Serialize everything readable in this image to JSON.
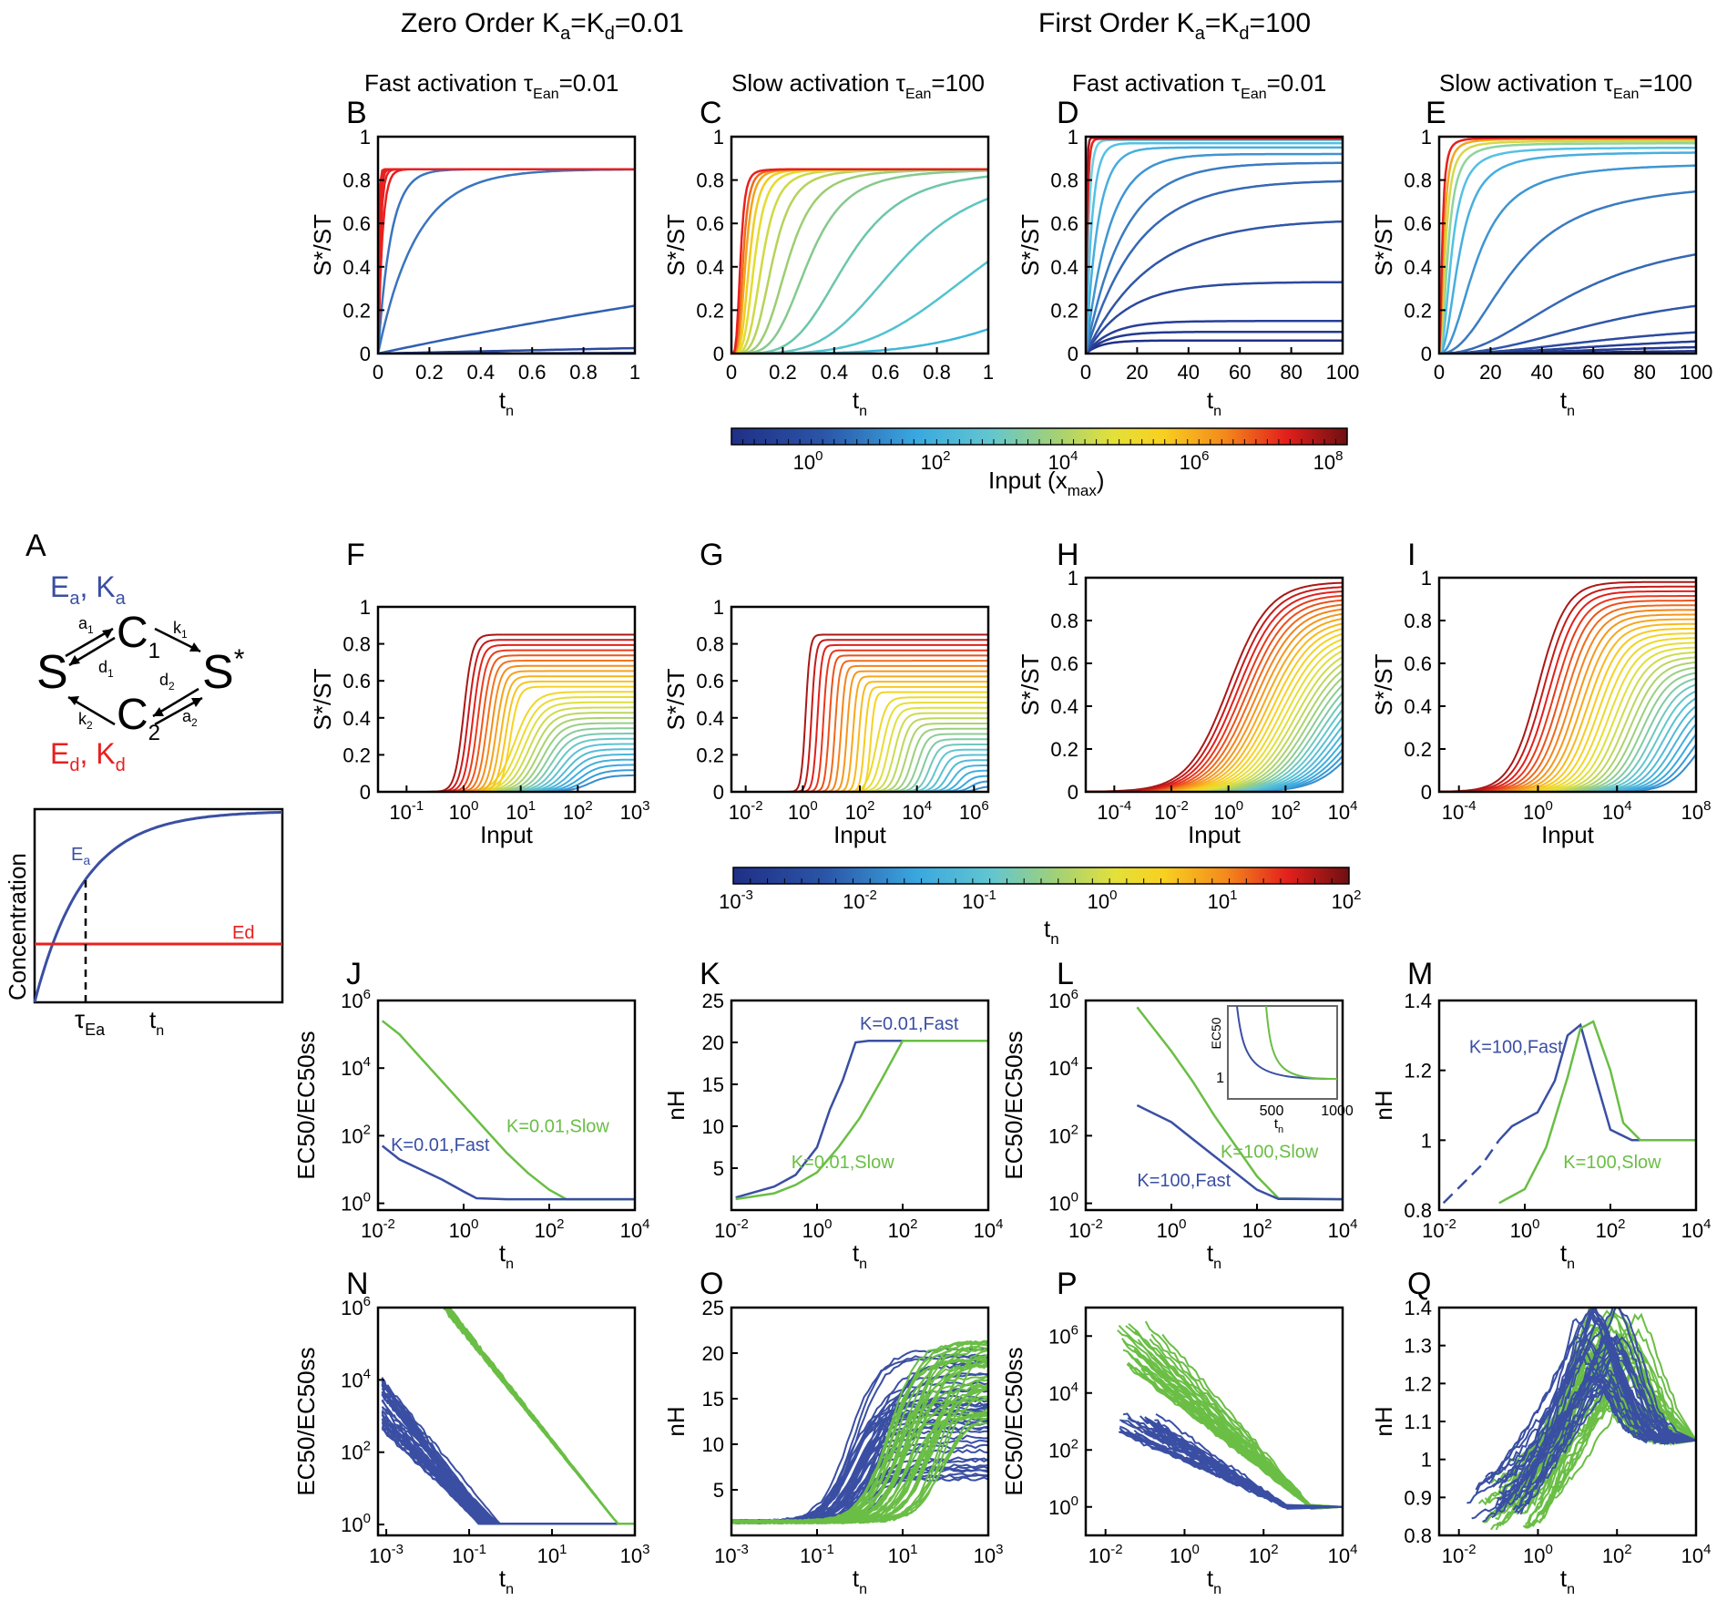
{
  "headers": {
    "zero_order": "Zero Order K",
    "zero_order_sub": "a",
    "zero_order_mid": "=K",
    "zero_order_sub2": "d",
    "zero_order_val": "=0.01",
    "first_order": "First Order K",
    "first_order_val": "=100"
  },
  "diagram_A": {
    "letter": "A",
    "ea": "E",
    "ea_sub": "a",
    "ka": "K",
    "ed": "E",
    "ed_sub": "d",
    "kd": "K",
    "s": "S",
    "s_star": "S",
    "star": "*",
    "c1": "C",
    "c2": "C",
    "one": "1",
    "two": "2",
    "a1": "a",
    "d1": "d",
    "k1": "k",
    "d2": "d",
    "k2": "k",
    "a2": "a",
    "comma": ",",
    "colors": {
      "activator": "#3a4fa3",
      "deactivator": "#e8201f"
    }
  },
  "diagram_time": {
    "ylabel": "Concentration",
    "ea_label": "E",
    "ea_sub": "a",
    "ed_label": "Ed",
    "tau": "τ",
    "tau_sub": "Ea",
    "tn": "t",
    "tn_sub": "n"
  },
  "colorbars": [
    {
      "label": "Input (x",
      "label_sub": "max",
      "label_close": ")",
      "ticks": [
        "10",
        "10",
        "10",
        "10",
        "10"
      ],
      "exps": [
        "0",
        "2",
        "4",
        "6",
        "8"
      ]
    },
    {
      "label": "t",
      "label_sub": "n",
      "ticks": [
        "10",
        "10",
        "10",
        "10",
        "10",
        "10"
      ],
      "exps": [
        "-3",
        "-2",
        "-1",
        "0",
        "1",
        "2"
      ]
    }
  ],
  "chart_data": [
    {
      "id": "B",
      "type": "line",
      "title": "Fast activation",
      "tau": "τ",
      "tau_sub": "Ean",
      "tau_val": "=0.01",
      "xlabel": "t",
      "xlabel_sub": "n",
      "ylabel": "S*/ST",
      "xlim": [
        0,
        1
      ],
      "ylim": [
        0,
        1
      ],
      "xticks": [
        "0",
        "0.2",
        "0.4",
        "0.6",
        "0.8",
        "1"
      ],
      "yticks": [
        "0",
        "0.2",
        "0.4",
        "0.6",
        "0.8",
        "1"
      ],
      "plateau": 0.85,
      "rise_times": [
        1000,
        100,
        10,
        0.45,
        0.15,
        0.05,
        0.03,
        0.02,
        0.015,
        0.01
      ],
      "colors": [
        "#2a3f94",
        "#2b4aa0",
        "#2f5fb0",
        "#3a74bf",
        "#3a74bf",
        "#e8201f",
        "#e8201f",
        "#e8201f",
        "#e8201f",
        "#e8201f"
      ]
    },
    {
      "id": "C",
      "type": "line",
      "title": "Slow activation",
      "tau": "τ",
      "tau_sub": "Ean",
      "tau_val": "=100",
      "xlabel": "t",
      "xlabel_sub": "n",
      "ylabel": "S*/ST",
      "xlim": [
        0,
        1
      ],
      "ylim": [
        0,
        1
      ],
      "xticks": [
        "0",
        "0.2",
        "0.4",
        "0.6",
        "0.8",
        "1"
      ],
      "yticks": [
        "0",
        "0.2",
        "0.4",
        "0.6",
        "0.8",
        "1"
      ],
      "plateau": 0.85,
      "sigmoid_mid": [
        1.6,
        1.0,
        0.66,
        0.45,
        0.3,
        0.22,
        0.16,
        0.12,
        0.09,
        0.07,
        0.055,
        0.045,
        0.035
      ],
      "colors": [
        "#3fb7d8",
        "#51c2cf",
        "#5fc4c2",
        "#6cc6aa",
        "#86c98e",
        "#9ccd73",
        "#b5d35a",
        "#cfd943",
        "#e3dc2e",
        "#f1cc22",
        "#f3a21e",
        "#ef6c1d",
        "#e8201f"
      ]
    },
    {
      "id": "D",
      "type": "line",
      "title": "Fast activation",
      "tau": "τ",
      "tau_sub": "Ean",
      "tau_val": "=0.01",
      "xlabel": "t",
      "xlabel_sub": "n",
      "ylabel": "S*/ST",
      "xlim": [
        0,
        100
      ],
      "ylim": [
        0,
        1
      ],
      "xticks": [
        "0",
        "20",
        "40",
        "60",
        "80",
        "100"
      ],
      "yticks": [
        "0",
        "0.2",
        "0.4",
        "0.6",
        "0.8",
        "1"
      ],
      "plateaus": [
        0.06,
        0.1,
        0.15,
        0.33,
        0.62,
        0.8,
        0.88,
        0.92,
        0.95,
        0.97,
        0.985,
        0.99,
        0.995
      ],
      "rates": [
        0.01,
        0.012,
        0.015,
        0.02,
        0.025,
        0.04,
        0.06,
        0.1,
        0.2,
        0.4,
        0.8,
        1.5,
        3.0
      ],
      "colors": [
        "#1f2f86",
        "#23398f",
        "#273f96",
        "#2c4a9f",
        "#3056a8",
        "#3568b4",
        "#3a7bc2",
        "#3f95d2",
        "#47aede",
        "#54c0e5",
        "#6bcfe0",
        "#e8201f",
        "#a0141a"
      ]
    },
    {
      "id": "E",
      "type": "line",
      "title": "Slow activation",
      "tau": "τ",
      "tau_sub": "Ean",
      "tau_val": "=100",
      "xlabel": "t",
      "xlabel_sub": "n",
      "ylabel": "S*/ST",
      "xlim": [
        0,
        100
      ],
      "ylim": [
        0,
        1
      ],
      "xticks": [
        "0",
        "20",
        "40",
        "60",
        "80",
        "100"
      ],
      "yticks": [
        "0",
        "0.2",
        "0.4",
        "0.6",
        "0.8",
        "1"
      ],
      "plateaus": [
        0.02,
        0.05,
        0.09,
        0.15,
        0.32,
        0.58,
        0.8,
        0.88,
        0.93,
        0.95,
        0.97,
        0.98,
        0.99,
        0.995
      ],
      "mids": [
        90,
        85,
        80,
        75,
        70,
        55,
        30,
        15,
        8,
        5,
        3.5,
        2.5,
        1.8,
        1.2
      ],
      "colors": [
        "#1f2f86",
        "#23398f",
        "#273f96",
        "#2c4a9f",
        "#3056a8",
        "#3568b4",
        "#3a7bc2",
        "#3f95d2",
        "#47aede",
        "#54c0e5",
        "#8ed3a0",
        "#d6d84a",
        "#f1a71f",
        "#e8201f"
      ]
    },
    {
      "id": "F",
      "type": "line",
      "xlabel": "Input",
      "ylabel": "S*/ST",
      "xlog": true,
      "xlim": [
        -1.5,
        3
      ],
      "ylim": [
        0,
        1
      ],
      "xticks": [
        "10",
        "10",
        "10",
        "10",
        "10"
      ],
      "xtick_exps": [
        "-1",
        "0",
        "1",
        "2",
        "3"
      ],
      "yticks": [
        "0",
        "0.2",
        "0.4",
        "0.6",
        "0.8",
        "1"
      ],
      "curves": 28,
      "plateau_min": 0.09,
      "plateau_max": 0.85,
      "mid_min": 0.0,
      "mid_max": 2.2
    },
    {
      "id": "G",
      "type": "line",
      "xlabel": "Input",
      "ylabel": "S*/ST",
      "xlog": true,
      "xlim": [
        -2.5,
        6.5
      ],
      "ylim": [
        0,
        1
      ],
      "xticks": [
        "10",
        "10",
        "10",
        "10",
        "10"
      ],
      "xtick_exps": [
        "-2",
        "0",
        "2",
        "4",
        "6"
      ],
      "yticks": [
        "0",
        "0.2",
        "0.4",
        "0.6",
        "0.8",
        "1"
      ],
      "curves": 30,
      "plateau_min": 0.03,
      "plateau_max": 0.85,
      "mid_min": 0.1,
      "mid_max": 6.1
    },
    {
      "id": "H",
      "type": "line",
      "xlabel": "Input",
      "ylabel": "S*/ST",
      "xlog": true,
      "xlim": [
        -5,
        4
      ],
      "ylim": [
        0,
        1
      ],
      "xticks": [
        "10",
        "10",
        "10",
        "10",
        "10"
      ],
      "xtick_exps": [
        "-4",
        "-2",
        "0",
        "2",
        "4"
      ],
      "yticks": [
        "0",
        "0.2",
        "0.4",
        "0.6",
        "0.8",
        "1"
      ],
      "curves": 30,
      "plateau_min": 0.42,
      "plateau_max": 0.98,
      "mid_min": 0.0,
      "mid_max": 4.5
    },
    {
      "id": "I",
      "type": "line",
      "xlabel": "Input",
      "ylabel": "S*/ST",
      "xlog": true,
      "xlim": [
        -5,
        8
      ],
      "ylim": [
        0,
        1
      ],
      "xticks": [
        "10",
        "10",
        "10",
        "10"
      ],
      "xtick_exps": [
        "-4",
        "0",
        "4",
        "8"
      ],
      "yticks": [
        "0",
        "0.2",
        "0.4",
        "0.6",
        "0.8",
        "1"
      ],
      "curves": 30,
      "plateau_min": 0.35,
      "plateau_max": 0.98,
      "mid_min": 0.0,
      "mid_max": 8.0
    },
    {
      "id": "J",
      "type": "line",
      "xlabel": "t",
      "xlabel_sub": "n",
      "ylabel": "EC50/EC50ss",
      "xlog": true,
      "ylog": true,
      "xlim": [
        -2,
        4
      ],
      "ylim": [
        -0.2,
        6
      ],
      "xticks": [
        "10",
        "10",
        "10",
        "10"
      ],
      "xtick_exps": [
        "-2",
        "0",
        "2",
        "4"
      ],
      "yticks": [
        "10",
        "10",
        "10",
        "10"
      ],
      "ytick_exps": [
        "0",
        "2",
        "4",
        "6"
      ],
      "series": [
        {
          "name": "K=0.01,Slow",
          "color": "#6abe45",
          "x": [
            -1.9,
            -1.5,
            -1.0,
            -0.5,
            0.0,
            0.5,
            1.0,
            1.5,
            2.0,
            2.4,
            4.0
          ],
          "y": [
            5.4,
            5.0,
            4.3,
            3.6,
            2.9,
            2.2,
            1.5,
            0.9,
            0.4,
            0.12,
            0.12
          ]
        },
        {
          "name": "K=0.01,Fast",
          "color": "#3a4fa3",
          "x": [
            -1.9,
            -1.5,
            -1.0,
            -0.5,
            0.0,
            0.3,
            1.0,
            4.0
          ],
          "y": [
            1.7,
            1.3,
            1.0,
            0.7,
            0.35,
            0.15,
            0.12,
            0.12
          ]
        }
      ]
    },
    {
      "id": "K",
      "type": "line",
      "xlabel": "t",
      "xlabel_sub": "n",
      "ylabel": "nH",
      "xlog": true,
      "xlim": [
        -2,
        4
      ],
      "ylim": [
        0,
        25
      ],
      "xticks": [
        "10",
        "10",
        "10",
        "10"
      ],
      "xtick_exps": [
        "-2",
        "0",
        "2",
        "4"
      ],
      "yticks": [
        "5",
        "10",
        "15",
        "20",
        "25"
      ],
      "series": [
        {
          "name": "K=0.01,Fast",
          "color": "#3a4fa3",
          "x": [
            -1.9,
            -1.0,
            -0.5,
            0.0,
            0.3,
            0.6,
            0.9,
            1.2,
            4.0
          ],
          "y": [
            1.5,
            2.8,
            4.2,
            7.5,
            12.0,
            15.5,
            20.0,
            20.2,
            20.2
          ]
        },
        {
          "name": "K=0.01,Slow",
          "color": "#6abe45",
          "x": [
            -1.9,
            -1.0,
            -0.5,
            0.0,
            0.5,
            1.0,
            1.5,
            2.0,
            4.0
          ],
          "y": [
            1.3,
            2.0,
            3.0,
            4.5,
            7.5,
            11.0,
            15.5,
            20.2,
            20.2
          ]
        }
      ]
    },
    {
      "id": "L",
      "type": "line",
      "xlabel": "t",
      "xlabel_sub": "n",
      "ylabel": "EC50/EC50ss",
      "xlog": true,
      "ylog": true,
      "xlim": [
        -2,
        4
      ],
      "ylim": [
        -0.2,
        6
      ],
      "xticks": [
        "10",
        "10",
        "10",
        "10"
      ],
      "xtick_exps": [
        "-2",
        "0",
        "2",
        "4"
      ],
      "yticks": [
        "10",
        "10",
        "10",
        "10"
      ],
      "ytick_exps": [
        "0",
        "2",
        "4",
        "6"
      ],
      "series": [
        {
          "name": "K=100,Slow",
          "color": "#6abe45",
          "x": [
            -0.8,
            0.0,
            0.5,
            1.0,
            1.5,
            2.0,
            2.5,
            4.0
          ],
          "y": [
            5.8,
            4.5,
            3.6,
            2.6,
            1.7,
            0.8,
            0.15,
            0.12
          ]
        },
        {
          "name": "K=100,Fast",
          "color": "#3a4fa3",
          "x": [
            -0.8,
            0.0,
            0.5,
            1.0,
            1.5,
            2.0,
            2.5,
            4.0
          ],
          "y": [
            2.9,
            2.4,
            1.9,
            1.4,
            0.9,
            0.4,
            0.13,
            0.12
          ]
        }
      ],
      "inset": {
        "ylabel": "EC50",
        "ytick": "1",
        "xticks": [
          "500",
          "1000"
        ],
        "xlabel": "t",
        "xlabel_sub": "n"
      }
    },
    {
      "id": "M",
      "type": "line",
      "xlabel": "t",
      "xlabel_sub": "n",
      "ylabel": "nH",
      "xlog": true,
      "xlim": [
        -2,
        4
      ],
      "ylim": [
        0.8,
        1.4
      ],
      "xticks": [
        "10",
        "10",
        "10",
        "10"
      ],
      "xtick_exps": [
        "-2",
        "0",
        "2",
        "4"
      ],
      "yticks": [
        "0.8",
        "1",
        "1.2",
        "1.4"
      ],
      "series": [
        {
          "name": "K=100,Fast",
          "color": "#3a4fa3",
          "x": [
            -1.9,
            -1.0,
            -0.6,
            -0.3,
            0.0,
            0.3,
            0.7,
            1.0,
            1.3,
            1.6,
            2.0,
            2.5,
            4.0
          ],
          "y": [
            0.82,
            0.93,
            1.0,
            1.04,
            1.06,
            1.08,
            1.17,
            1.3,
            1.33,
            1.2,
            1.03,
            1.0,
            1.0
          ],
          "dashed_until": -0.6
        },
        {
          "name": "K=100,Slow",
          "color": "#6abe45",
          "x": [
            -0.6,
            0.0,
            0.5,
            1.0,
            1.3,
            1.6,
            2.0,
            2.3,
            2.7,
            4.0
          ],
          "y": [
            0.82,
            0.86,
            0.98,
            1.18,
            1.32,
            1.34,
            1.2,
            1.05,
            1.0,
            1.0
          ]
        }
      ]
    },
    {
      "id": "N",
      "type": "line",
      "xlabel": "t",
      "xlabel_sub": "n",
      "ylabel": "EC50/EC50ss",
      "xlog": true,
      "ylog": true,
      "xlim": [
        -3.2,
        3
      ],
      "ylim": [
        -0.3,
        6
      ],
      "xticks": [
        "10",
        "10",
        "10",
        "10"
      ],
      "xtick_exps": [
        "-3",
        "-1",
        "1",
        "3"
      ],
      "yticks": [
        "10",
        "10",
        "10",
        "10"
      ],
      "ytick_exps": [
        "0",
        "2",
        "4",
        "6"
      ],
      "series_groups": [
        {
          "color": "#3a4fa3",
          "count": 40
        },
        {
          "color": "#6abe45",
          "count": 30
        }
      ]
    },
    {
      "id": "O",
      "type": "line",
      "xlabel": "t",
      "xlabel_sub": "n",
      "ylabel": "nH",
      "xlog": true,
      "xlim": [
        -3,
        3
      ],
      "ylim": [
        0,
        25
      ],
      "xticks": [
        "10",
        "10",
        "10",
        "10"
      ],
      "xtick_exps": [
        "-3",
        "-1",
        "1",
        "3"
      ],
      "yticks": [
        "5",
        "10",
        "15",
        "20",
        "25"
      ],
      "series_groups": [
        {
          "color": "#3a4fa3",
          "count": 40
        },
        {
          "color": "#6abe45",
          "count": 40
        }
      ]
    },
    {
      "id": "P",
      "type": "line",
      "xlabel": "t",
      "xlabel_sub": "n",
      "ylabel": "EC50/EC50ss",
      "xlog": true,
      "ylog": true,
      "xlim": [
        -2.5,
        4
      ],
      "ylim": [
        -1,
        7
      ],
      "xticks": [
        "10",
        "10",
        "10",
        "10"
      ],
      "xtick_exps": [
        "-2",
        "0",
        "2",
        "4"
      ],
      "yticks": [
        "10",
        "10",
        "10",
        "10"
      ],
      "ytick_exps": [
        "0",
        "2",
        "4",
        "6"
      ],
      "series_groups": [
        {
          "color": "#6abe45",
          "count": 30
        },
        {
          "color": "#3a4fa3",
          "count": 30
        }
      ]
    },
    {
      "id": "Q",
      "type": "line",
      "xlabel": "t",
      "xlabel_sub": "n",
      "ylabel": "nH",
      "xlog": true,
      "xlim": [
        -2.5,
        4
      ],
      "ylim": [
        0.8,
        1.4
      ],
      "xticks": [
        "10",
        "10",
        "10",
        "10"
      ],
      "xtick_exps": [
        "-2",
        "0",
        "2",
        "4"
      ],
      "yticks": [
        "0.8",
        "0.9",
        "1",
        "1.1",
        "1.2",
        "1.3",
        "1.4"
      ],
      "series_groups": [
        {
          "color": "#6abe45",
          "count": 45
        },
        {
          "color": "#3a4fa3",
          "count": 30
        }
      ]
    }
  ]
}
